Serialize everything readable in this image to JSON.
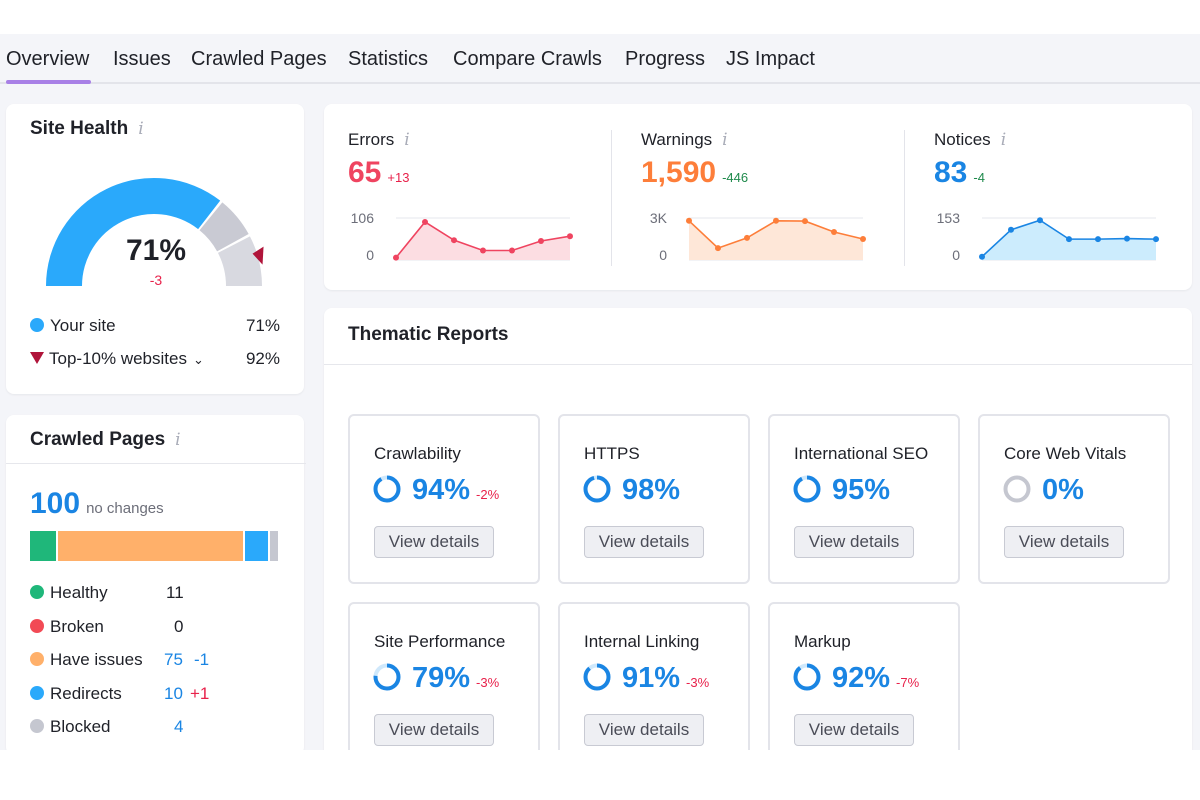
{
  "tabs": [
    {
      "label": "Overview",
      "active": true
    },
    {
      "label": "Issues"
    },
    {
      "label": "Crawled Pages"
    },
    {
      "label": "Statistics"
    },
    {
      "label": "Compare Crawls"
    },
    {
      "label": "Progress"
    },
    {
      "label": "JS Impact"
    }
  ],
  "site_health": {
    "title": "Site Health",
    "score": 71,
    "score_label": "71%",
    "delta": "-3",
    "top10_score": 92,
    "legend": [
      {
        "label": "Your site",
        "value": "71%",
        "color": "#2aa9fb"
      },
      {
        "label": "Top-10% websites",
        "value": "92%",
        "color": "#b0143a"
      }
    ]
  },
  "crawled_pages": {
    "title": "Crawled Pages",
    "total": "100",
    "total_note": "no changes",
    "breakdown": [
      {
        "label": "Healthy",
        "count": "11",
        "value": 11,
        "delta": "",
        "color": "#1fb77a"
      },
      {
        "label": "Broken",
        "count": "0",
        "value": 0,
        "delta": "",
        "color": "#f24a55"
      },
      {
        "label": "Have issues",
        "count": "75",
        "value": 75,
        "delta": "-1",
        "color": "#ffb06a"
      },
      {
        "label": "Redirects",
        "count": "10",
        "value": 10,
        "delta": "+1",
        "color": "#2aa9fb"
      },
      {
        "label": "Blocked",
        "count": "4",
        "value": 4,
        "delta": "",
        "color": "#c5c7d0"
      }
    ]
  },
  "metrics": [
    {
      "label": "Errors",
      "value": "65",
      "delta": "+13",
      "color": "#ef4460",
      "delta_color": "#e8224b",
      "fill": "#fcdde2",
      "ytop": "106",
      "ybottom": "0",
      "ymax": 106,
      "points": [
        6,
        96,
        50,
        24,
        24,
        48,
        60
      ]
    },
    {
      "label": "Warnings",
      "value": "1,590",
      "delta": "-446",
      "color": "#fd7e3a",
      "delta_color": "#1f8a4c",
      "fill": "#fee7d8",
      "ytop": "3K",
      "ybottom": "0",
      "ymax": 3000,
      "points": [
        2800,
        850,
        1580,
        2800,
        2780,
        2000,
        1500
      ]
    },
    {
      "label": "Notices",
      "value": "83",
      "delta": "-4",
      "color": "#1a85e3",
      "delta_color": "#1f8a4c",
      "fill": "#ccecfd",
      "ytop": "153",
      "ybottom": "0",
      "ymax": 153,
      "points": [
        12,
        110,
        145,
        76,
        76,
        78,
        76
      ]
    }
  ],
  "thematic": {
    "title": "Thematic Reports",
    "button_label": "View details",
    "reports": [
      {
        "name": "Crawlability",
        "pct": "94%",
        "value": 94,
        "delta": "-2%"
      },
      {
        "name": "HTTPS",
        "pct": "98%",
        "value": 98,
        "delta": ""
      },
      {
        "name": "International SEO",
        "pct": "95%",
        "value": 95,
        "delta": ""
      },
      {
        "name": "Core Web Vitals",
        "pct": "0%",
        "value": 0,
        "delta": ""
      },
      {
        "name": "Site Performance",
        "pct": "79%",
        "value": 79,
        "delta": "-3%"
      },
      {
        "name": "Internal Linking",
        "pct": "91%",
        "value": 91,
        "delta": "-3%"
      },
      {
        "name": "Markup",
        "pct": "92%",
        "value": 92,
        "delta": "-7%"
      }
    ]
  }
}
